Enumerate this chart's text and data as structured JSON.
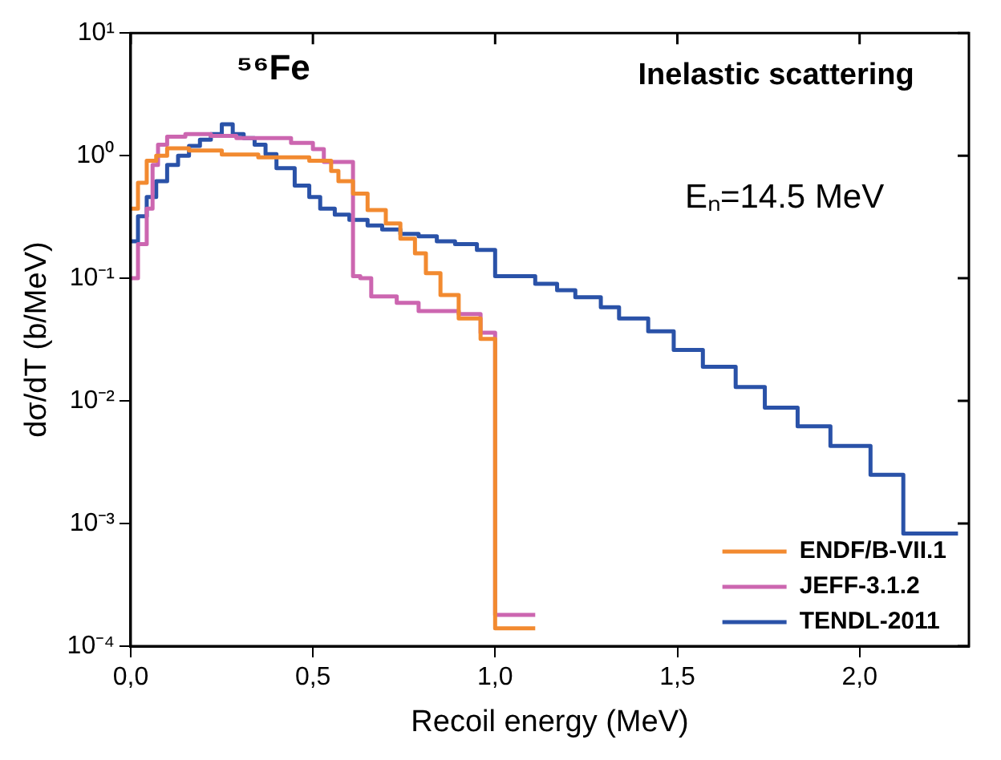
{
  "chart_data": {
    "type": "step",
    "xlabel": "Recoil energy (MeV)",
    "ylabel": "dσ/dT (b/MeV)",
    "annotations": [
      "⁵⁶Fe",
      "Inelastic scattering",
      "Eₙ=14.5 MeV"
    ],
    "log": "y",
    "xlim": [
      0,
      2.3
    ],
    "ylim": [
      0.0001,
      10
    ],
    "xticks": [
      {
        "value": 0,
        "label": "0,0"
      },
      {
        "value": 0.5,
        "label": "0,5"
      },
      {
        "value": 1,
        "label": "1,0"
      },
      {
        "value": 1.5,
        "label": "1,5"
      },
      {
        "value": 2,
        "label": "2,0"
      }
    ],
    "yticks": [
      {
        "value": 0.0001,
        "label": "10⁻⁴"
      },
      {
        "value": 0.001,
        "label": "10⁻³"
      },
      {
        "value": 0.01,
        "label": "10⁻²"
      },
      {
        "value": 0.1,
        "label": "10⁻¹"
      },
      {
        "value": 1,
        "label": "10⁰"
      },
      {
        "value": 10,
        "label": "10¹"
      }
    ],
    "grid": false,
    "legend": "bottom right",
    "marker": "none",
    "line_style": "solid",
    "series": [
      {
        "name": "ENDF/B-VII.1",
        "color": "#f28a30",
        "x": [
          0,
          0.02,
          0.044,
          0.07,
          0.1,
          0.16,
          0.25,
          0.35,
          0.49,
          0.55,
          0.57,
          0.61,
          0.65,
          0.7,
          0.74,
          0.78,
          0.81,
          0.85,
          0.9,
          0.96,
          1.0,
          1.11
        ],
        "values": [
          0.37,
          0.6,
          0.91,
          1.0,
          1.15,
          1.1,
          1.02,
          0.97,
          0.91,
          0.75,
          0.62,
          0.49,
          0.36,
          0.28,
          0.21,
          0.16,
          0.11,
          0.073,
          0.047,
          0.032,
          0.00014,
          0.00014
        ]
      },
      {
        "name": "JEFF-3.1.2",
        "color": "#cc66b0",
        "x": [
          0,
          0.02,
          0.044,
          0.06,
          0.075,
          0.1,
          0.15,
          0.22,
          0.29,
          0.44,
          0.5,
          0.53,
          0.61,
          0.63,
          0.66,
          0.73,
          0.79,
          0.9,
          0.96,
          1.0,
          1.11
        ],
        "values": [
          0.1,
          0.19,
          0.37,
          0.84,
          1.23,
          1.43,
          1.5,
          1.45,
          1.39,
          1.27,
          1.13,
          0.89,
          0.104,
          0.1,
          0.071,
          0.063,
          0.054,
          0.051,
          0.036,
          0.00018,
          0.00018
        ]
      },
      {
        "name": "TENDL-2011",
        "color": "#2a52a8",
        "x": [
          0,
          0.02,
          0.044,
          0.07,
          0.1,
          0.13,
          0.16,
          0.19,
          0.22,
          0.25,
          0.28,
          0.31,
          0.34,
          0.37,
          0.4,
          0.45,
          0.49,
          0.52,
          0.56,
          0.6,
          0.65,
          0.69,
          0.74,
          0.79,
          0.84,
          0.89,
          0.95,
          1.0,
          1.11,
          1.17,
          1.22,
          1.29,
          1.34,
          1.42,
          1.49,
          1.57,
          1.66,
          1.74,
          1.83,
          1.92,
          2.03,
          2.12,
          2.27
        ],
        "values": [
          0.2,
          0.32,
          0.46,
          0.62,
          0.84,
          1.0,
          1.2,
          1.35,
          1.5,
          1.8,
          1.5,
          1.39,
          1.23,
          1.03,
          0.79,
          0.57,
          0.46,
          0.37,
          0.33,
          0.3,
          0.27,
          0.25,
          0.23,
          0.22,
          0.2,
          0.19,
          0.17,
          0.104,
          0.09,
          0.08,
          0.07,
          0.058,
          0.047,
          0.037,
          0.026,
          0.019,
          0.013,
          0.0088,
          0.0062,
          0.0043,
          0.0025,
          0.00083,
          0.00083
        ]
      }
    ]
  }
}
